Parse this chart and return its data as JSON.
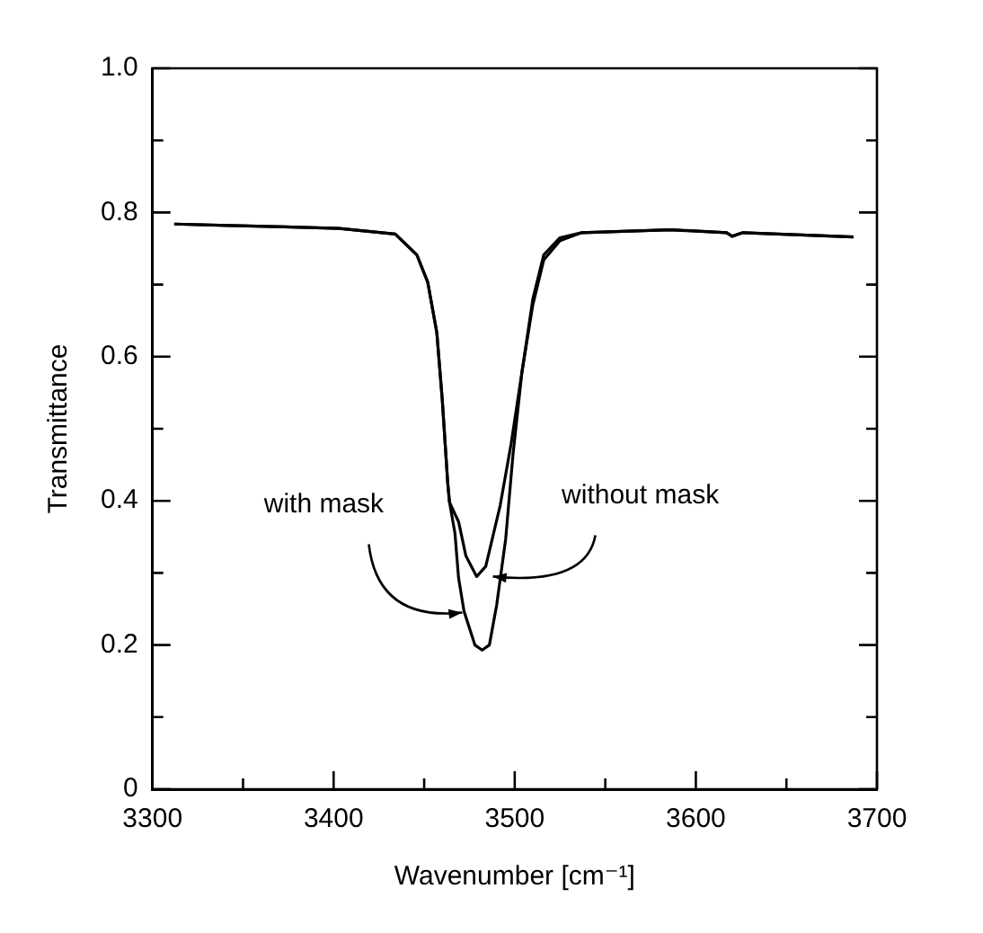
{
  "chart_data": {
    "type": "line",
    "xlabel": "Wavenumber [cm⁻¹]",
    "ylabel": "Transmittance",
    "xlim": [
      3300,
      3700
    ],
    "ylim": [
      0,
      1
    ],
    "xticks": [
      3300,
      {
        "value": 3350,
        "label": null
      },
      3400,
      {
        "value": 3450,
        "label": null
      },
      3500,
      {
        "value": 3550,
        "label": null
      },
      3600,
      {
        "value": 3650,
        "label": null
      },
      3700
    ],
    "yticks": [
      0,
      {
        "value": 0.1,
        "label": null
      },
      0.2,
      {
        "value": 0.3,
        "label": null
      },
      0.4,
      {
        "value": 0.5,
        "label": null
      },
      0.6,
      {
        "value": 0.7,
        "label": null
      },
      0.8,
      {
        "value": 0.9,
        "label": null
      },
      {
        "value": 1,
        "label": "1.0"
      }
    ],
    "grid": false,
    "legend": false,
    "marker": "none",
    "line_style": "solid",
    "series": [
      {
        "color": "#000000",
        "x": [
          3312,
          3342,
          3373,
          3403,
          3434,
          3446,
          3452,
          3457,
          3460,
          3463,
          3464,
          3467,
          3469,
          3472,
          3478,
          3482,
          3486,
          3490,
          3495,
          3499,
          3504,
          3510,
          3516,
          3525,
          3537,
          3586,
          3617,
          3620,
          3626,
          3687
        ],
        "values": [
          0.784,
          0.782,
          0.78,
          0.778,
          0.77,
          0.741,
          0.703,
          0.633,
          0.54,
          0.425,
          0.398,
          0.355,
          0.293,
          0.247,
          0.2,
          0.193,
          0.2,
          0.255,
          0.347,
          0.463,
          0.579,
          0.672,
          0.734,
          0.761,
          0.772,
          0.776,
          0.772,
          0.767,
          0.772,
          0.766
        ]
      },
      {
        "color": "#000000",
        "x": [
          3312,
          3342,
          3373,
          3403,
          3434,
          3446,
          3452,
          3457,
          3460,
          3463,
          3464,
          3469,
          3473,
          3479,
          3484,
          3492,
          3498,
          3504,
          3510,
          3516,
          3525,
          3537,
          3586,
          3617,
          3620,
          3626,
          3687
        ],
        "values": [
          0.784,
          0.782,
          0.78,
          0.778,
          0.77,
          0.741,
          0.703,
          0.633,
          0.54,
          0.425,
          0.398,
          0.371,
          0.324,
          0.295,
          0.309,
          0.394,
          0.479,
          0.579,
          0.68,
          0.741,
          0.765,
          0.772,
          0.776,
          0.772,
          0.767,
          0.772,
          0.766
        ]
      }
    ],
    "annotations": [
      {
        "text": "with mask",
        "x": 3474,
        "y": 0.245
      },
      {
        "text": "without mask",
        "x": 3485,
        "y": 0.295
      }
    ]
  }
}
